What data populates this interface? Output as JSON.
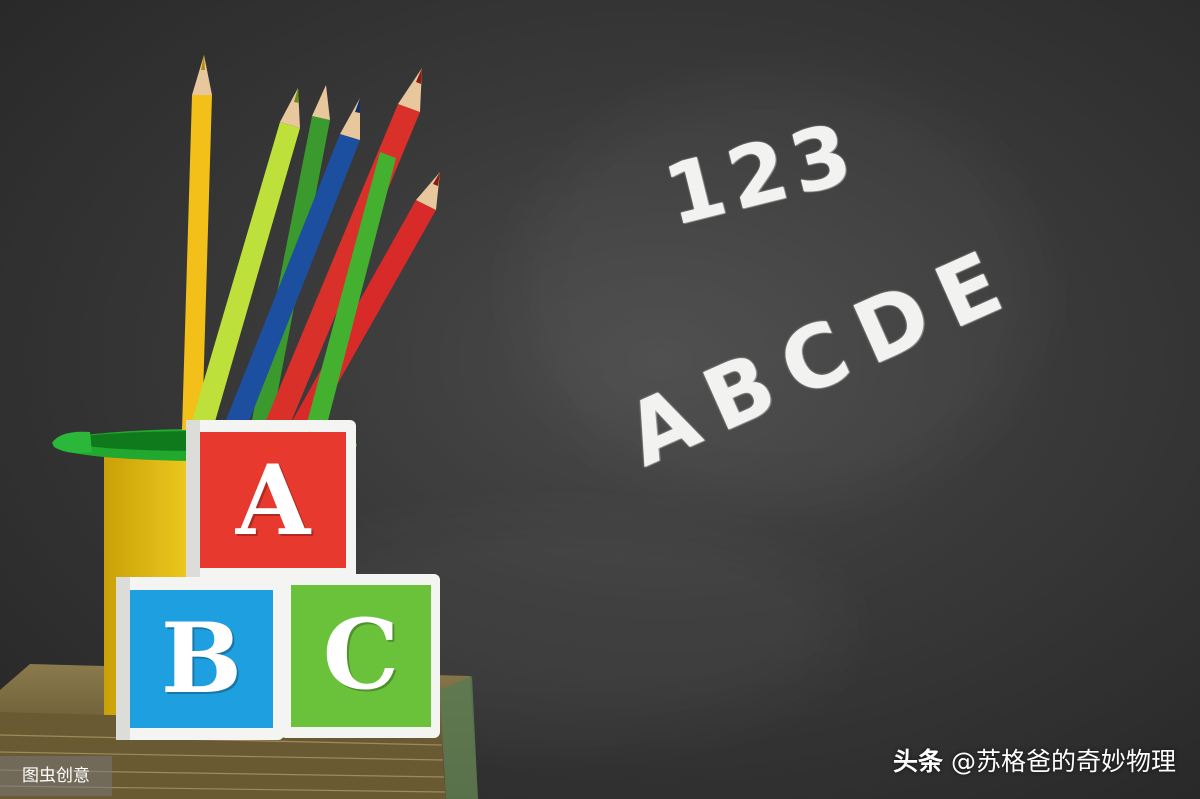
{
  "chalkboard": {
    "numbers_text": "123",
    "letters_text": "ABCDE"
  },
  "blocks": {
    "top": {
      "letter": "A",
      "face_color": "#e8392f"
    },
    "bottom_left": {
      "letter": "B",
      "face_color": "#1e9fe0"
    },
    "bottom_right": {
      "letter": "C",
      "face_color": "#6ac23a"
    }
  },
  "pencils": {
    "colors": [
      "#f2c018",
      "#bde03a",
      "#3a9a2e",
      "#1d4fa0",
      "#d9302a",
      "#d92a2a"
    ]
  },
  "watermarks": {
    "left_text": "图虫创意",
    "right_brand": "头条",
    "right_handle": "@苏格爸的奇妙物理"
  }
}
